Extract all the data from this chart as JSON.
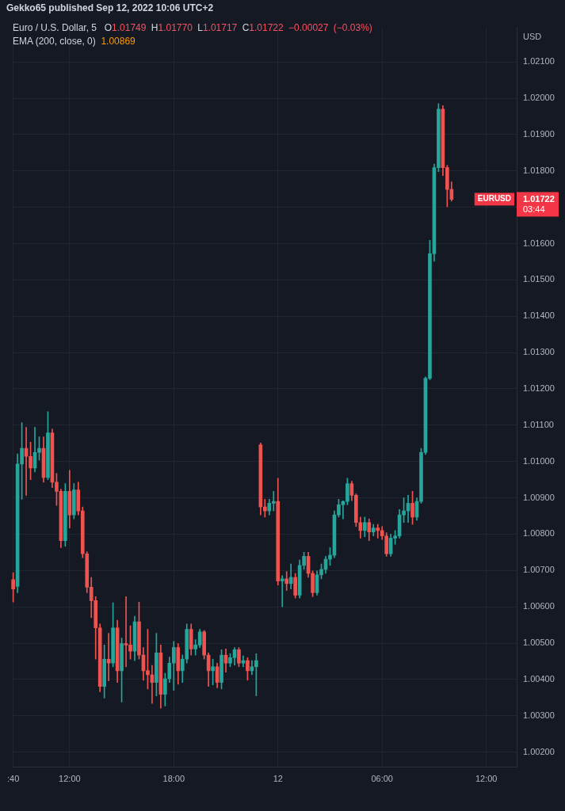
{
  "chart_data": {
    "type": "candlestick",
    "title": "Euro / U.S. Dollar, 5",
    "ylabel": "USD",
    "annotations": [
      "Gekko65 published Sep 12, 2022 10:06 UTC+2",
      "O1.01749 H1.01770 L1.01717 C1.01722 −0.00027 (−0.03%)",
      "EMA (200, close, 0) 1.00869",
      "EURUSD",
      "1.01722",
      "03:44"
    ],
    "categories": [
      ":40",
      null,
      null,
      null,
      null,
      null,
      null,
      null,
      null,
      null,
      null,
      null,
      null,
      "12:00",
      null,
      null,
      null,
      null,
      null,
      null,
      null,
      null,
      null,
      null,
      null,
      null,
      null,
      null,
      null,
      null,
      null,
      null,
      null,
      null,
      null,
      null,
      null,
      "18:00",
      null,
      null,
      null,
      null,
      null,
      null,
      null,
      null,
      null,
      null,
      null,
      null,
      null,
      null,
      null,
      null,
      null,
      null,
      null,
      null,
      null,
      null,
      null,
      "12",
      null,
      null,
      null,
      null,
      null,
      null,
      null,
      null,
      null,
      null,
      null,
      null,
      null,
      null,
      null,
      null,
      null,
      null,
      null,
      null,
      null,
      null,
      null,
      "06:00",
      null,
      null,
      null,
      null,
      null,
      null,
      null,
      null,
      null,
      null,
      null,
      null,
      null,
      null,
      null,
      null,
      null,
      null,
      null,
      null,
      null,
      null,
      null,
      "12:00",
      null,
      null,
      null,
      null,
      null,
      null,
      null
    ],
    "ohlc": [
      [
        1.00675,
        1.00694,
        1.00613,
        1.00649
      ],
      [
        1.00656,
        1.01021,
        1.00639,
        1.00993
      ],
      [
        1.00993,
        1.01107,
        1.00896,
        1.01036
      ],
      [
        1.01036,
        1.01094,
        1.00907,
        1.01014
      ],
      [
        1.01014,
        1.01053,
        1.0095,
        1.00982
      ],
      [
        1.00982,
        1.01094,
        1.00971,
        1.01025
      ],
      [
        1.01025,
        1.01068,
        1.01004,
        1.01036
      ],
      [
        1.01036,
        1.01068,
        1.00943,
        1.00956
      ],
      [
        1.00956,
        1.01137,
        1.0095,
        1.01079
      ],
      [
        1.01079,
        1.01089,
        1.00928,
        1.00943
      ],
      [
        1.00943,
        1.00967,
        1.00879,
        1.00918
      ],
      [
        1.00918,
        1.00924,
        1.00763,
        1.00782
      ],
      [
        1.00782,
        1.00939,
        1.00767,
        1.00918
      ],
      [
        1.00918,
        1.00976,
        1.00817,
        1.00853
      ],
      [
        1.00853,
        1.00939,
        1.00842,
        1.00922
      ],
      [
        1.00922,
        1.00943,
        1.00853,
        1.00864
      ],
      [
        1.00864,
        1.00875,
        1.00735,
        1.00746
      ],
      [
        1.00746,
        1.00752,
        1.00639,
        1.00654
      ],
      [
        1.00654,
        1.00681,
        1.0057,
        1.00617
      ],
      [
        1.00617,
        1.00628,
        1.00456,
        1.00542
      ],
      [
        1.00542,
        1.00553,
        1.00366,
        1.00381
      ],
      [
        1.00381,
        1.00495,
        1.00349,
        1.00456
      ],
      [
        1.00456,
        1.00527,
        1.00396,
        1.00445
      ],
      [
        1.00445,
        1.00611,
        1.00435,
        1.00542
      ],
      [
        1.00542,
        1.00563,
        1.00392,
        1.00424
      ],
      [
        1.00424,
        1.00514,
        1.00338,
        1.00499
      ],
      [
        1.00499,
        1.00628,
        1.00435,
        1.00495
      ],
      [
        1.00495,
        1.00548,
        1.00456,
        1.00478
      ],
      [
        1.00478,
        1.00574,
        1.00452,
        1.00559
      ],
      [
        1.00559,
        1.00613,
        1.00456,
        1.00467
      ],
      [
        1.00467,
        1.00488,
        1.00398,
        1.00424
      ],
      [
        1.00424,
        1.00538,
        1.00374,
        1.00413
      ],
      [
        1.00413,
        1.00439,
        1.00334,
        1.00392
      ],
      [
        1.00392,
        1.00527,
        1.00355,
        1.00473
      ],
      [
        1.00473,
        1.00495,
        1.00321,
        1.00359
      ],
      [
        1.00359,
        1.00417,
        1.00327,
        1.00402
      ],
      [
        1.00402,
        1.00462,
        1.00392,
        1.00445
      ],
      [
        1.00445,
        1.00505,
        1.0037,
        1.00488
      ],
      [
        1.00488,
        1.00499,
        1.00387,
        1.00424
      ],
      [
        1.00424,
        1.00467,
        1.00392,
        1.00456
      ],
      [
        1.00456,
        1.00553,
        1.00445,
        1.00538
      ],
      [
        1.00538,
        1.00553,
        1.00467,
        1.00484
      ],
      [
        1.00484,
        1.0051,
        1.00467,
        1.00495
      ],
      [
        1.00495,
        1.00538,
        1.00488,
        1.00531
      ],
      [
        1.00531,
        1.00535,
        1.00456,
        1.00467
      ],
      [
        1.00467,
        1.00473,
        1.00381,
        1.00424
      ],
      [
        1.00424,
        1.00456,
        1.00385,
        1.00435
      ],
      [
        1.00435,
        1.00445,
        1.00377,
        1.00392
      ],
      [
        1.00392,
        1.00482,
        1.00374,
        1.00467
      ],
      [
        1.00467,
        1.00484,
        1.0042,
        1.00445
      ],
      [
        1.00445,
        1.00471,
        1.00435,
        1.0046
      ],
      [
        1.0046,
        1.00488,
        1.00439,
        1.00482
      ],
      [
        1.00482,
        1.00488,
        1.00435,
        1.00445
      ],
      [
        1.00445,
        1.00465,
        1.00435,
        1.00452
      ],
      [
        1.00452,
        1.0046,
        1.00398,
        1.00424
      ],
      [
        1.00424,
        1.00452,
        1.00413,
        1.00435
      ],
      [
        1.00435,
        1.00471,
        1.00355,
        1.00452
      ],
      [
        1.01046,
        1.01051,
        1.00853,
        1.00875
      ],
      [
        1.00875,
        1.00896,
        1.00847,
        1.00864
      ],
      [
        1.00864,
        1.00896,
        1.00853,
        1.00885
      ],
      [
        1.00885,
        1.00918,
        1.00864,
        1.0089
      ],
      [
        1.0089,
        1.00954,
        1.0066,
        1.00671
      ],
      [
        1.00671,
        1.00686,
        1.006,
        1.00677
      ],
      [
        1.00677,
        1.00697,
        1.00645,
        1.00664
      ],
      [
        1.00664,
        1.00718,
        1.00649,
        1.00681
      ],
      [
        1.00681,
        1.00692,
        1.00624,
        1.00632
      ],
      [
        1.00632,
        1.00729,
        1.00624,
        1.00714
      ],
      [
        1.00714,
        1.0075,
        1.00703,
        1.00739
      ],
      [
        1.00739,
        1.0075,
        1.00681,
        1.00692
      ],
      [
        1.00692,
        1.00699,
        1.00628,
        1.00639
      ],
      [
        1.00639,
        1.00699,
        1.00632,
        1.00688
      ],
      [
        1.00688,
        1.00718,
        1.00677,
        1.00703
      ],
      [
        1.00703,
        1.00739,
        1.00692,
        1.00731
      ],
      [
        1.00731,
        1.00763,
        1.00714,
        1.00742
      ],
      [
        1.00742,
        1.00864,
        1.00735,
        1.00853
      ],
      [
        1.00853,
        1.00896,
        1.00847,
        1.00881
      ],
      [
        1.00881,
        1.00892,
        1.00842,
        1.0089
      ],
      [
        1.0089,
        1.00954,
        1.00881,
        1.00939
      ],
      [
        1.00939,
        1.00946,
        1.00892,
        1.00907
      ],
      [
        1.00907,
        1.00911,
        1.00821,
        1.00832
      ],
      [
        1.00832,
        1.00847,
        1.00789,
        1.0081
      ],
      [
        1.0081,
        1.00847,
        1.00793,
        1.00832
      ],
      [
        1.00832,
        1.00842,
        1.00782,
        1.00806
      ],
      [
        1.00806,
        1.00827,
        1.00795,
        1.00817
      ],
      [
        1.00817,
        1.00827,
        1.00789,
        1.0081
      ],
      [
        1.0081,
        1.00821,
        1.00785,
        1.00795
      ],
      [
        1.00795,
        1.00804,
        1.00739,
        1.00746
      ],
      [
        1.00746,
        1.008,
        1.00739,
        1.00789
      ],
      [
        1.00789,
        1.0081,
        1.00772,
        1.00795
      ],
      [
        1.00795,
        1.00868,
        1.00789,
        1.00853
      ],
      [
        1.00853,
        1.009,
        1.00832,
        1.00864
      ],
      [
        1.00864,
        1.00907,
        1.00832,
        1.00885
      ],
      [
        1.00885,
        1.00918,
        1.00827,
        1.00847
      ],
      [
        1.00847,
        1.009,
        1.00838,
        1.0089
      ],
      [
        1.0089,
        1.01036,
        1.00885,
        1.01025
      ],
      [
        1.01025,
        1.01233,
        1.01019,
        1.01229
      ],
      [
        1.01229,
        1.01609,
        1.01225,
        1.01572
      ],
      [
        1.01572,
        1.01819,
        1.01551,
        1.01809
      ],
      [
        1.01809,
        1.01985,
        1.01798,
        1.0197
      ],
      [
        1.0197,
        1.0198,
        1.01787,
        1.01809
      ],
      [
        1.01809,
        1.01815,
        1.01701,
        1.01749
      ],
      [
        1.01749,
        1.0177,
        1.01717,
        1.01722
      ],
      null,
      null,
      null,
      null,
      null,
      null,
      null,
      null,
      null,
      null,
      null,
      null,
      null,
      null,
      null
    ],
    "colors": [
      "#ef5350",
      "#26a69a",
      "#26a69a",
      "#ef5350",
      "#ef5350",
      "#26a69a",
      "#26a69a",
      "#ef5350",
      "#26a69a",
      "#ef5350",
      "#ef5350",
      "#ef5350",
      "#26a69a",
      "#ef5350",
      "#26a69a",
      "#ef5350",
      "#ef5350",
      "#ef5350",
      "#ef5350",
      "#ef5350",
      "#ef5350",
      "#26a69a",
      "#ef5350",
      "#26a69a",
      "#ef5350",
      "#26a69a",
      "#ef5350",
      "#ef5350",
      "#26a69a",
      "#ef5350",
      "#ef5350",
      "#ef5350",
      "#ef5350",
      "#26a69a",
      "#ef5350",
      "#26a69a",
      "#26a69a",
      "#26a69a",
      "#ef5350",
      "#26a69a",
      "#26a69a",
      "#ef5350",
      "#26a69a",
      "#26a69a",
      "#ef5350",
      "#ef5350",
      "#26a69a",
      "#ef5350",
      "#26a69a",
      "#ef5350",
      "#26a69a",
      "#26a69a",
      "#ef5350",
      "#26a69a",
      "#ef5350",
      "#26a69a",
      "#26a69a",
      "#ef5350",
      "#ef5350",
      "#26a69a",
      "#26a69a",
      "#ef5350",
      "#26a69a",
      "#ef5350",
      "#26a69a",
      "#ef5350",
      "#26a69a",
      "#26a69a",
      "#ef5350",
      "#ef5350",
      "#26a69a",
      "#26a69a",
      "#26a69a",
      "#26a69a",
      "#26a69a",
      "#26a69a",
      "#26a69a",
      "#26a69a",
      "#ef5350",
      "#ef5350",
      "#ef5350",
      "#26a69a",
      "#ef5350",
      "#26a69a",
      "#ef5350",
      "#ef5350",
      "#ef5350",
      "#26a69a",
      "#26a69a",
      "#26a69a",
      "#26a69a",
      "#26a69a",
      "#ef5350",
      "#26a69a",
      "#26a69a",
      "#26a69a",
      "#26a69a",
      "#26a69a",
      "#26a69a",
      "#ef5350",
      "#ef5350",
      "#ef5350",
      null,
      null,
      null,
      null,
      null,
      null,
      null,
      null,
      null,
      null,
      null,
      null,
      null,
      null,
      null
    ],
    "ylim": [
      1.0016,
      1.02195
    ],
    "yticks": [
      {
        "value": 1.002,
        "label": "1.00200"
      },
      {
        "value": 1.003,
        "label": "1.00300"
      },
      {
        "value": 1.004,
        "label": "1.00400"
      },
      {
        "value": 1.005,
        "label": "1.00500"
      },
      {
        "value": 1.006,
        "label": "1.00600"
      },
      {
        "value": 1.007,
        "label": "1.00700"
      },
      {
        "value": 1.008,
        "label": "1.00800"
      },
      {
        "value": 1.009,
        "label": "1.00900"
      },
      {
        "value": 1.01,
        "label": "1.01000"
      },
      {
        "value": 1.011,
        "label": "1.01100"
      },
      {
        "value": 1.012,
        "label": "1.01200"
      },
      {
        "value": 1.013,
        "label": "1.01300"
      },
      {
        "value": 1.014,
        "label": "1.01400"
      },
      {
        "value": 1.015,
        "label": "1.01500"
      },
      {
        "value": 1.016,
        "label": "1.01600"
      },
      {
        "value": 1.017,
        "label": null
      },
      {
        "value": 1.018,
        "label": "1.01800"
      },
      {
        "value": 1.019,
        "label": "1.01900"
      },
      {
        "value": 1.02,
        "label": "1.02000"
      },
      {
        "value": 1.021,
        "label": "1.02100"
      }
    ],
    "grid": true
  }
}
